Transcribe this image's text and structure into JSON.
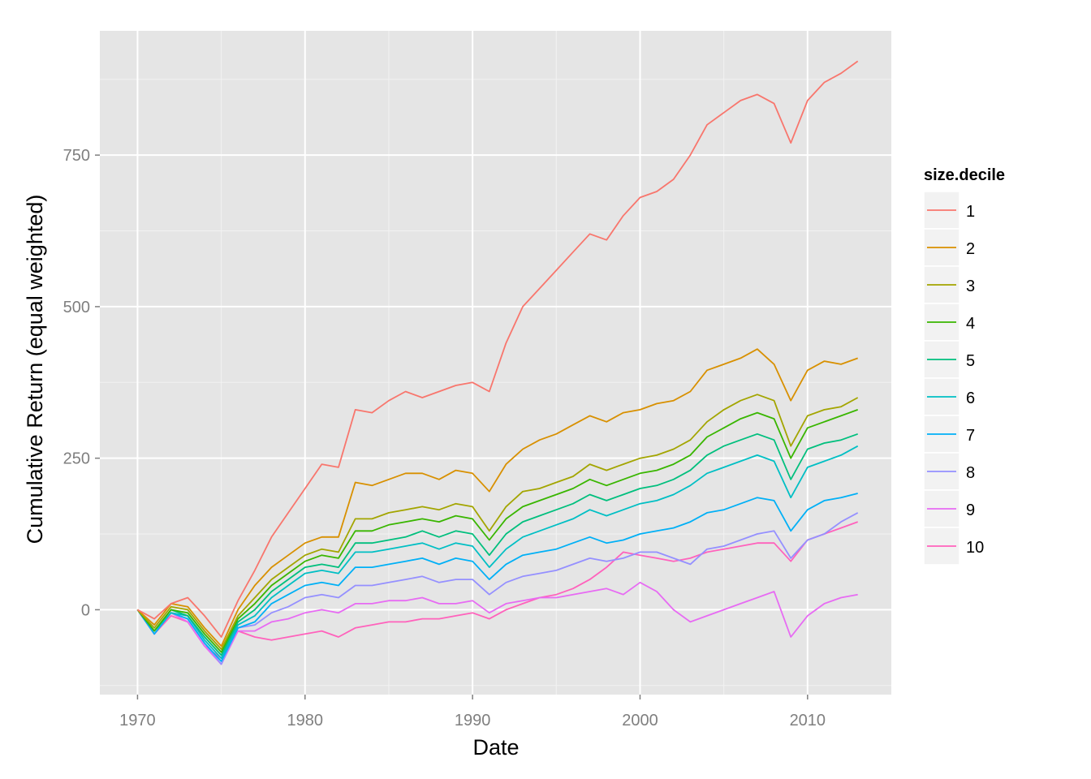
{
  "chart_data": {
    "type": "line",
    "xlabel": "Date",
    "ylabel": "Cumulative Return (equal weighted)",
    "xlim": [
      1967.75,
      2015.0
    ],
    "ylim": [
      -140,
      955
    ],
    "x_ticks": [
      1970,
      1980,
      1990,
      2000,
      2010
    ],
    "y_ticks": [
      0,
      250,
      500,
      750
    ],
    "grid": true,
    "legend": {
      "title": "size.decile",
      "position": "right"
    },
    "colors": [
      "#F8766D",
      "#D89000",
      "#A3A500",
      "#39B600",
      "#00BF7D",
      "#00BFC4",
      "#00B0F6",
      "#9590FF",
      "#E76BF3",
      "#FF62BC"
    ],
    "series": [
      {
        "name": "1",
        "x": [
          1970,
          1971,
          1972,
          1973,
          1974,
          1975,
          1976,
          1977,
          1978,
          1979,
          1980,
          1981,
          1982,
          1983,
          1984,
          1985,
          1986,
          1987,
          1988,
          1989,
          1990,
          1991,
          1992,
          1993,
          1994,
          1995,
          1996,
          1997,
          1998,
          1999,
          2000,
          2001,
          2002,
          2003,
          2004,
          2005,
          2006,
          2007,
          2008,
          2009,
          2010,
          2011,
          2012,
          2013
        ],
        "y": [
          0,
          -15,
          10,
          20,
          -10,
          -45,
          15,
          65,
          120,
          160,
          200,
          240,
          235,
          330,
          325,
          345,
          360,
          350,
          360,
          370,
          375,
          360,
          440,
          500,
          530,
          560,
          590,
          620,
          610,
          650,
          680,
          690,
          710,
          750,
          800,
          820,
          840,
          850,
          835,
          770,
          840,
          870,
          885,
          905
        ]
      },
      {
        "name": "2",
        "x": [
          1970,
          1971,
          1972,
          1973,
          1974,
          1975,
          1976,
          1977,
          1978,
          1979,
          1980,
          1981,
          1982,
          1983,
          1984,
          1985,
          1986,
          1987,
          1988,
          1989,
          1990,
          1991,
          1992,
          1993,
          1994,
          1995,
          1996,
          1997,
          1998,
          1999,
          2000,
          2001,
          2002,
          2003,
          2004,
          2005,
          2006,
          2007,
          2008,
          2009,
          2010,
          2011,
          2012,
          2013
        ],
        "y": [
          0,
          -25,
          10,
          5,
          -30,
          -60,
          0,
          40,
          70,
          90,
          110,
          120,
          120,
          210,
          205,
          215,
          225,
          225,
          215,
          230,
          225,
          195,
          240,
          265,
          280,
          290,
          305,
          320,
          310,
          325,
          330,
          340,
          345,
          360,
          395,
          405,
          415,
          430,
          405,
          345,
          395,
          410,
          405,
          415
        ]
      },
      {
        "name": "3",
        "x": [
          1970,
          1971,
          1972,
          1973,
          1974,
          1975,
          1976,
          1977,
          1978,
          1979,
          1980,
          1981,
          1982,
          1983,
          1984,
          1985,
          1986,
          1987,
          1988,
          1989,
          1990,
          1991,
          1992,
          1993,
          1994,
          1995,
          1996,
          1997,
          1998,
          1999,
          2000,
          2001,
          2002,
          2003,
          2004,
          2005,
          2006,
          2007,
          2008,
          2009,
          2010,
          2011,
          2012,
          2013
        ],
        "y": [
          0,
          -30,
          5,
          0,
          -35,
          -65,
          -10,
          20,
          50,
          70,
          90,
          100,
          95,
          150,
          150,
          160,
          165,
          170,
          165,
          175,
          170,
          130,
          170,
          195,
          200,
          210,
          220,
          240,
          230,
          240,
          250,
          255,
          265,
          280,
          310,
          330,
          345,
          355,
          345,
          270,
          320,
          330,
          335,
          350
        ]
      },
      {
        "name": "4",
        "x": [
          1970,
          1971,
          1972,
          1973,
          1974,
          1975,
          1976,
          1977,
          1978,
          1979,
          1980,
          1981,
          1982,
          1983,
          1984,
          1985,
          1986,
          1987,
          1988,
          1989,
          1990,
          1991,
          1992,
          1993,
          1994,
          1995,
          1996,
          1997,
          1998,
          1999,
          2000,
          2001,
          2002,
          2003,
          2004,
          2005,
          2006,
          2007,
          2008,
          2009,
          2010,
          2011,
          2012,
          2013
        ],
        "y": [
          0,
          -35,
          0,
          -5,
          -40,
          -70,
          -15,
          10,
          40,
          60,
          80,
          90,
          85,
          130,
          130,
          140,
          145,
          150,
          145,
          155,
          150,
          115,
          150,
          170,
          180,
          190,
          200,
          215,
          205,
          215,
          225,
          230,
          240,
          255,
          285,
          300,
          315,
          325,
          315,
          250,
          300,
          310,
          320,
          330
        ]
      },
      {
        "name": "5",
        "x": [
          1970,
          1971,
          1972,
          1973,
          1974,
          1975,
          1976,
          1977,
          1978,
          1979,
          1980,
          1981,
          1982,
          1983,
          1984,
          1985,
          1986,
          1987,
          1988,
          1989,
          1990,
          1991,
          1992,
          1993,
          1994,
          1995,
          1996,
          1997,
          1998,
          1999,
          2000,
          2001,
          2002,
          2003,
          2004,
          2005,
          2006,
          2007,
          2008,
          2009,
          2010,
          2011,
          2012,
          2013
        ],
        "y": [
          0,
          -35,
          0,
          -10,
          -45,
          -75,
          -20,
          0,
          30,
          50,
          70,
          75,
          70,
          110,
          110,
          115,
          120,
          130,
          120,
          130,
          125,
          90,
          125,
          145,
          155,
          165,
          175,
          190,
          180,
          190,
          200,
          205,
          215,
          230,
          255,
          270,
          280,
          290,
          280,
          215,
          265,
          275,
          280,
          290
        ]
      },
      {
        "name": "6",
        "x": [
          1970,
          1971,
          1972,
          1973,
          1974,
          1975,
          1976,
          1977,
          1978,
          1979,
          1980,
          1981,
          1982,
          1983,
          1984,
          1985,
          1986,
          1987,
          1988,
          1989,
          1990,
          1991,
          1992,
          1993,
          1994,
          1995,
          1996,
          1997,
          1998,
          1999,
          2000,
          2001,
          2002,
          2003,
          2004,
          2005,
          2006,
          2007,
          2008,
          2009,
          2010,
          2011,
          2012,
          2013
        ],
        "y": [
          0,
          -35,
          -5,
          -10,
          -50,
          -80,
          -25,
          -10,
          20,
          40,
          60,
          65,
          60,
          95,
          95,
          100,
          105,
          110,
          100,
          110,
          105,
          70,
          100,
          120,
          130,
          140,
          150,
          165,
          155,
          165,
          175,
          180,
          190,
          205,
          225,
          235,
          245,
          255,
          245,
          185,
          235,
          245,
          255,
          270
        ]
      },
      {
        "name": "7",
        "x": [
          1970,
          1971,
          1972,
          1973,
          1974,
          1975,
          1976,
          1977,
          1978,
          1979,
          1980,
          1981,
          1982,
          1983,
          1984,
          1985,
          1986,
          1987,
          1988,
          1989,
          1990,
          1991,
          1992,
          1993,
          1994,
          1995,
          1996,
          1997,
          1998,
          1999,
          2000,
          2001,
          2002,
          2003,
          2004,
          2005,
          2006,
          2007,
          2008,
          2009,
          2010,
          2011,
          2012,
          2013
        ],
        "y": [
          0,
          -40,
          -5,
          -15,
          -55,
          -85,
          -30,
          -20,
          10,
          25,
          40,
          45,
          40,
          70,
          70,
          75,
          80,
          85,
          75,
          85,
          80,
          50,
          75,
          90,
          95,
          100,
          110,
          120,
          110,
          115,
          125,
          130,
          135,
          145,
          160,
          165,
          175,
          185,
          180,
          130,
          165,
          180,
          185,
          192
        ]
      },
      {
        "name": "8",
        "x": [
          1970,
          1971,
          1972,
          1973,
          1974,
          1975,
          1976,
          1977,
          1978,
          1979,
          1980,
          1981,
          1982,
          1983,
          1984,
          1985,
          1986,
          1987,
          1988,
          1989,
          1990,
          1991,
          1992,
          1993,
          1994,
          1995,
          1996,
          1997,
          1998,
          1999,
          2000,
          2001,
          2002,
          2003,
          2004,
          2005,
          2006,
          2007,
          2008,
          2009,
          2010,
          2011,
          2012,
          2013
        ],
        "y": [
          0,
          -40,
          -5,
          -15,
          -55,
          -90,
          -30,
          -25,
          -5,
          5,
          20,
          25,
          20,
          40,
          40,
          45,
          50,
          55,
          45,
          50,
          50,
          25,
          45,
          55,
          60,
          65,
          75,
          85,
          80,
          85,
          95,
          95,
          85,
          75,
          100,
          105,
          115,
          125,
          130,
          85,
          115,
          125,
          145,
          160
        ]
      },
      {
        "name": "9",
        "x": [
          1970,
          1971,
          1972,
          1973,
          1974,
          1975,
          1976,
          1977,
          1978,
          1979,
          1980,
          1981,
          1982,
          1983,
          1984,
          1985,
          1986,
          1987,
          1988,
          1989,
          1990,
          1991,
          1992,
          1993,
          1994,
          1995,
          1996,
          1997,
          1998,
          1999,
          2000,
          2001,
          2002,
          2003,
          2004,
          2005,
          2006,
          2007,
          2008,
          2009,
          2010,
          2011,
          2012,
          2013
        ],
        "y": [
          0,
          -40,
          -5,
          -20,
          -60,
          -90,
          -35,
          -35,
          -20,
          -15,
          -5,
          0,
          -5,
          10,
          10,
          15,
          15,
          20,
          10,
          10,
          15,
          -5,
          10,
          15,
          20,
          20,
          25,
          30,
          35,
          25,
          45,
          30,
          0,
          -20,
          -10,
          0,
          10,
          20,
          30,
          -45,
          -10,
          10,
          20,
          25
        ]
      },
      {
        "name": "10",
        "x": [
          1970,
          1971,
          1972,
          1973,
          1974,
          1975,
          1976,
          1977,
          1978,
          1979,
          1980,
          1981,
          1982,
          1983,
          1984,
          1985,
          1986,
          1987,
          1988,
          1989,
          1990,
          1991,
          1992,
          1993,
          1994,
          1995,
          1996,
          1997,
          1998,
          1999,
          2000,
          2001,
          2002,
          2003,
          2004,
          2005,
          2006,
          2007,
          2008,
          2009,
          2010,
          2011,
          2012,
          2013
        ],
        "y": [
          0,
          -40,
          -10,
          -20,
          -60,
          -80,
          -35,
          -45,
          -50,
          -45,
          -40,
          -35,
          -45,
          -30,
          -25,
          -20,
          -20,
          -15,
          -15,
          -10,
          -5,
          -15,
          0,
          10,
          20,
          25,
          35,
          50,
          70,
          95,
          90,
          85,
          80,
          85,
          95,
          100,
          105,
          110,
          110,
          80,
          115,
          125,
          135,
          145
        ]
      }
    ]
  }
}
